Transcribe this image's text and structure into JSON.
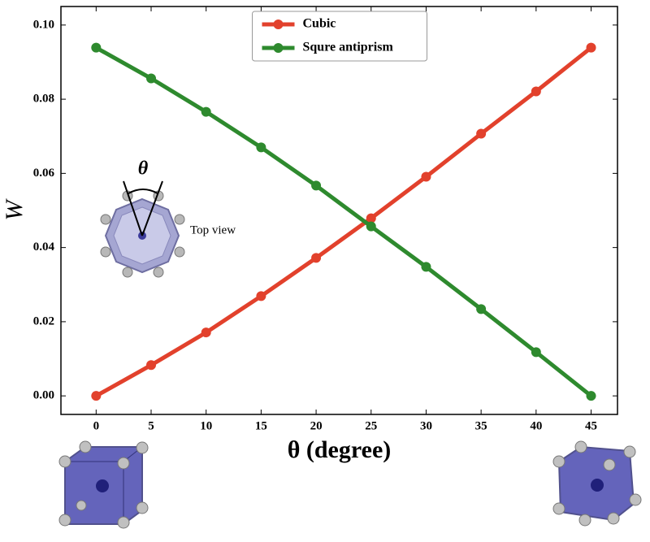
{
  "chart_data": {
    "type": "line",
    "x": [
      0,
      5,
      10,
      15,
      20,
      25,
      30,
      35,
      40,
      45
    ],
    "series": [
      {
        "name": "Cubic",
        "color": "#e2412c",
        "values": [
          0,
          0.0083,
          0.0171,
          0.0269,
          0.0372,
          0.0479,
          0.0591,
          0.0707,
          0.0821,
          0.0939
        ]
      },
      {
        "name": "Squre antiprism",
        "color": "#2e8a2e",
        "values": [
          0.0939,
          0.0856,
          0.0766,
          0.067,
          0.0567,
          0.0457,
          0.0348,
          0.0234,
          0.0118,
          0
        ]
      }
    ],
    "xlabel": "θ (degree)",
    "ylabel": "W",
    "xlim": [
      -3.2,
      47.4
    ],
    "ylim": [
      -0.005,
      0.105
    ],
    "xticks": [
      0,
      5,
      10,
      15,
      20,
      25,
      30,
      35,
      40,
      45
    ],
    "yticks": [
      {
        "value": 0,
        "label": "0.00"
      },
      {
        "value": 0.02,
        "label": "0.02"
      },
      {
        "value": 0.04,
        "label": "0.04"
      },
      {
        "value": 0.06,
        "label": "0.06"
      },
      {
        "value": 0.08,
        "label": "0.08"
      },
      {
        "value": 0.1,
        "label": "0.10"
      }
    ],
    "grid": false,
    "legend": "upper center",
    "annotations": [
      "θ",
      "Top view"
    ]
  }
}
